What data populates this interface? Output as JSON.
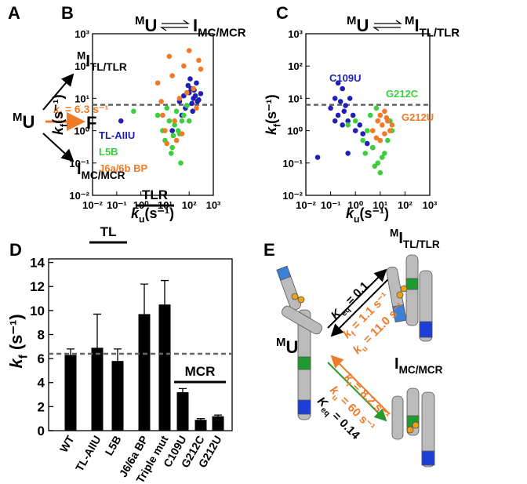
{
  "panel_a": {
    "letter": "A",
    "start": {
      "sup": "M",
      "main": "U"
    },
    "top": {
      "sup": "M",
      "main": "I",
      "sub": "TL/TLR"
    },
    "middle": "F",
    "rate": {
      "main": "k",
      "sub": "f",
      "text": " = 6.3 s⁻¹"
    },
    "bottom": {
      "main": "I",
      "sub": "MC/MCR"
    }
  },
  "chart_data": [
    {
      "type": "scatter",
      "letter": "B",
      "left": {
        "sup": "M",
        "main": "U"
      },
      "right": {
        "main": "I",
        "sub": "MC/MCR"
      },
      "xlabel": {
        "main": "k",
        "sub": "u",
        "unit": "(s⁻¹)"
      },
      "ylabel": {
        "main": "k",
        "sub": "f",
        "unit": "(s⁻¹)"
      },
      "xscale": "log",
      "yscale": "log",
      "xlim": [
        0.01,
        1000
      ],
      "ylim": [
        0.01,
        1000
      ],
      "xticks": [
        {
          "value": 0.01,
          "label": "10⁻²"
        },
        {
          "value": 0.1,
          "label": "10⁻¹"
        },
        {
          "value": 1,
          "label": "10⁰"
        },
        {
          "value": 10,
          "label": "10¹"
        },
        {
          "value": 100,
          "label": "10²"
        },
        {
          "value": 1000,
          "label": "10³"
        }
      ],
      "yticks": [
        {
          "value": 0.01,
          "label": "10⁻²"
        },
        {
          "value": 0.1,
          "label": "10⁻¹"
        },
        {
          "value": 1,
          "label": "10⁰"
        },
        {
          "value": 10,
          "label": "10¹"
        },
        {
          "value": 100,
          "label": "10²"
        },
        {
          "value": 1000,
          "label": "10³"
        }
      ],
      "hline": 6.3,
      "legend": "lower left",
      "series": [
        {
          "name": "TL-AIIU",
          "color": "#1f1fb4",
          "x": [
            40,
            60,
            80,
            100,
            120,
            150,
            200,
            250,
            70,
            90,
            130,
            180,
            110,
            160,
            300,
            50,
            140,
            0.15,
            20,
            220
          ],
          "values": [
            8,
            12,
            6,
            15,
            20,
            10,
            30,
            9,
            5,
            25,
            7,
            12,
            40,
            18,
            14,
            3,
            4,
            2,
            1,
            8
          ]
        },
        {
          "name": "L5B",
          "color": "#3ccf3c",
          "x": [
            5,
            8,
            10,
            15,
            20,
            25,
            30,
            40,
            50,
            12,
            18,
            35,
            60,
            80,
            0.5,
            100,
            22,
            45
          ],
          "values": [
            3,
            1,
            0.5,
            2,
            0.3,
            1.5,
            4,
            0.8,
            2,
            5,
            0.2,
            1,
            3,
            6,
            4,
            2,
            0.7,
            0.1
          ]
        },
        {
          "name": "J6a/6b BP",
          "color": "#f07a28",
          "x": [
            5,
            8,
            10,
            15,
            20,
            30,
            40,
            60,
            100,
            150,
            200,
            250,
            12,
            25,
            50,
            80,
            300,
            7
          ],
          "values": [
            30,
            3,
            1,
            200,
            50,
            0.5,
            10,
            100,
            300,
            20,
            5,
            150,
            0.4,
            2,
            0.8,
            15,
            80,
            8
          ]
        }
      ]
    },
    {
      "type": "scatter",
      "letter": "C",
      "left": {
        "sup": "M",
        "main": "U"
      },
      "right": {
        "sup": "M",
        "main": "I",
        "sub": "TL/TLR"
      },
      "xlabel": {
        "main": "k",
        "sub": "u",
        "unit": "(s⁻¹)"
      },
      "ylabel": {
        "main": "k",
        "sub": "f",
        "unit": "(s⁻¹)"
      },
      "xscale": "log",
      "yscale": "log",
      "xlim": [
        0.01,
        1000
      ],
      "ylim": [
        0.01,
        1000
      ],
      "xticks": [
        {
          "value": 0.01,
          "label": "10⁻²"
        },
        {
          "value": 0.1,
          "label": "10⁻¹"
        },
        {
          "value": 1,
          "label": "10⁰"
        },
        {
          "value": 10,
          "label": "10¹"
        },
        {
          "value": 100,
          "label": "10²"
        },
        {
          "value": 1000,
          "label": "10³"
        }
      ],
      "yticks": [
        {
          "value": 0.01,
          "label": "10⁻²"
        },
        {
          "value": 0.1,
          "label": "10⁻¹"
        },
        {
          "value": 1,
          "label": "10⁰"
        },
        {
          "value": 10,
          "label": "10¹"
        },
        {
          "value": 100,
          "label": "10²"
        },
        {
          "value": 1000,
          "label": "10³"
        }
      ],
      "hline": 6.3,
      "series": [
        {
          "name": "C109U",
          "color": "#1f1fb4",
          "x": [
            0.1,
            0.15,
            0.2,
            0.25,
            0.3,
            0.35,
            0.4,
            0.5,
            0.6,
            0.2,
            0.3,
            0.15,
            0.8,
            1,
            2,
            3,
            0.03,
            5,
            0.5,
            1.5
          ],
          "values": [
            5,
            10,
            3,
            8,
            20,
            4,
            6,
            2,
            10,
            30,
            1.5,
            2,
            3,
            1,
            0.8,
            0.4,
            0.15,
            0.3,
            0.2,
            1.5
          ]
        },
        {
          "name": "G212C",
          "color": "#3ccf3c",
          "x": [
            1,
            2,
            3,
            5,
            8,
            10,
            15,
            20,
            30,
            4,
            6,
            12,
            0.5,
            25,
            7,
            2.5
          ],
          "values": [
            2,
            0.5,
            1,
            0.3,
            0.1,
            0.05,
            0.2,
            0.5,
            1,
            3,
            0.08,
            0.15,
            1.5,
            2,
            5,
            0.2
          ]
        },
        {
          "name": "G212U",
          "color": "#f07a28",
          "x": [
            5,
            8,
            10,
            12,
            15,
            20,
            25,
            10,
            15,
            30,
            7,
            18
          ],
          "values": [
            1,
            2,
            3,
            1.5,
            0.8,
            2,
            1,
            0.5,
            4,
            1.5,
            0.6,
            2.5
          ]
        }
      ]
    },
    {
      "type": "bar",
      "letter": "D",
      "ylabel": {
        "main": "k",
        "sub": "f",
        "unit": " (s⁻¹)"
      },
      "categories": [
        "WT",
        "TL-AIIU",
        "L5B",
        "J6/6a BP",
        "Triple mut",
        "C109U",
        "G212C",
        "G212U"
      ],
      "values": [
        6.3,
        6.9,
        5.8,
        9.7,
        10.5,
        3.2,
        0.9,
        1.2
      ],
      "errors": [
        0.5,
        2.8,
        1.0,
        2.5,
        2.0,
        0.3,
        0.1,
        0.1
      ],
      "color": "#000000",
      "ylim": [
        0,
        14.3
      ],
      "yticks": [
        0,
        2,
        4,
        6,
        8,
        10,
        12,
        14
      ],
      "hline": 6.4,
      "groups": [
        "TL",
        "TLR",
        "MCR"
      ]
    }
  ],
  "panel_e": {
    "letter": "E",
    "start": {
      "sup": "M",
      "main": "U"
    },
    "top": {
      "sup": "M",
      "main": "I",
      "sub": "TL/TLR"
    },
    "bottom": {
      "main": "I",
      "sub": "MC/MCR"
    },
    "upper_keq": {
      "main": "K",
      "sub": "eq",
      "text": " = 0.1"
    },
    "upper_kf": {
      "main": "k",
      "sub": "f",
      "text": " = 1.1 s⁻¹"
    },
    "upper_ku": {
      "main": "k",
      "sub": "u",
      "text": " = 11.0 s⁻¹"
    },
    "lower_kf": {
      "main": "k",
      "sub": "f",
      "text": " = 8.2 s⁻¹"
    },
    "lower_ku": {
      "main": "k",
      "sub": "u",
      "text": " = 60 s⁻¹"
    },
    "lower_keq": {
      "main": "K",
      "sub": "eq",
      "text": " = 0.14"
    }
  }
}
